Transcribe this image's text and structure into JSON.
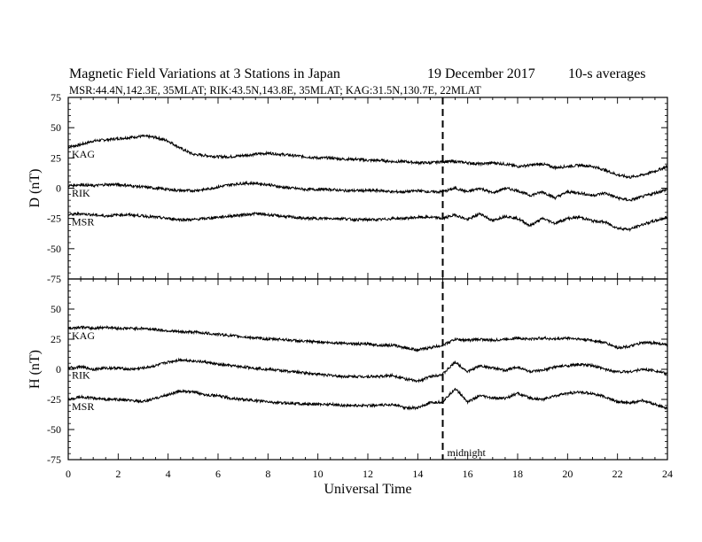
{
  "header": {
    "title": "Magnetic Field Variations at 3 Stations in Japan",
    "date": "19 December 2017",
    "averaging": "10-s averages",
    "stations_line": "MSR:44.4N,142.3E, 35MLAT;  RIK:43.5N,143.8E, 35MLAT;  KAG:31.5N,130.7E, 22MLAT"
  },
  "colors": {
    "ink": "#000000",
    "background": "#ffffff"
  },
  "chart_data": [
    {
      "type": "line",
      "ylabel": "D (nT)",
      "ylim": [
        -75,
        75
      ],
      "yticks": [
        -75,
        -50,
        -25,
        0,
        25,
        50,
        75
      ],
      "xlim": [
        0,
        24
      ],
      "series": [
        {
          "name": "KAG",
          "x": [
            0,
            0.5,
            1,
            1.5,
            2,
            2.5,
            3,
            3.5,
            4,
            4.5,
            5,
            5.5,
            6,
            6.5,
            7,
            7.5,
            8,
            8.5,
            9,
            9.5,
            10,
            10.5,
            11,
            11.5,
            12,
            12.5,
            13,
            13.5,
            14,
            14.5,
            15,
            15.5,
            16,
            16.5,
            17,
            17.5,
            18,
            18.5,
            19,
            19.5,
            20,
            20.5,
            21,
            21.5,
            22,
            22.5,
            23,
            23.5,
            24
          ],
          "y": [
            34,
            36,
            39,
            40,
            41,
            42,
            43,
            42,
            39,
            33,
            28,
            27,
            26,
            26,
            27,
            28,
            29,
            28,
            27,
            26,
            25,
            25,
            24,
            24,
            23,
            23,
            22,
            22,
            21,
            21,
            22,
            22,
            21,
            20,
            21,
            20,
            18,
            19,
            20,
            17,
            18,
            19,
            18,
            15,
            11,
            9,
            11,
            14,
            18
          ]
        },
        {
          "name": "RIK",
          "x": [
            0,
            0.5,
            1,
            1.5,
            2,
            2.5,
            3,
            3.5,
            4,
            4.5,
            5,
            5.5,
            6,
            6.5,
            7,
            7.5,
            8,
            8.5,
            9,
            9.5,
            10,
            10.5,
            11,
            11.5,
            12,
            12.5,
            13,
            13.5,
            14,
            14.5,
            15,
            15.5,
            16,
            16.5,
            17,
            17.5,
            18,
            18.5,
            19,
            19.5,
            20,
            20.5,
            21,
            21.5,
            22,
            22.5,
            23,
            23.5,
            24
          ],
          "y": [
            2,
            3,
            2,
            3,
            3,
            2,
            1,
            0,
            -1,
            -2,
            -2,
            -1,
            1,
            3,
            4,
            4,
            3,
            1,
            0,
            -1,
            -1,
            -1,
            -2,
            -2,
            -2,
            -2,
            -3,
            -3,
            -2,
            -3,
            -3,
            0,
            -3,
            0,
            -4,
            0,
            -2,
            -6,
            -3,
            -8,
            -3,
            -4,
            -6,
            -4,
            -8,
            -10,
            -7,
            -4,
            -1
          ]
        },
        {
          "name": "MSR",
          "x": [
            0,
            0.5,
            1,
            1.5,
            2,
            2.5,
            3,
            3.5,
            4,
            4.5,
            5,
            5.5,
            6,
            6.5,
            7,
            7.5,
            8,
            8.5,
            9,
            9.5,
            10,
            10.5,
            11,
            11.5,
            12,
            12.5,
            13,
            13.5,
            14,
            14.5,
            15,
            15.5,
            16,
            16.5,
            17,
            17.5,
            18,
            18.5,
            19,
            19.5,
            20,
            20.5,
            21,
            21.5,
            22,
            22.5,
            23,
            23.5,
            24
          ],
          "y": [
            -22,
            -21,
            -22,
            -23,
            -22,
            -22,
            -23,
            -24,
            -25,
            -26,
            -26,
            -25,
            -24,
            -23,
            -22,
            -21,
            -22,
            -23,
            -24,
            -25,
            -25,
            -25,
            -25,
            -26,
            -26,
            -26,
            -25,
            -25,
            -24,
            -24,
            -25,
            -22,
            -26,
            -21,
            -27,
            -23,
            -25,
            -31,
            -25,
            -29,
            -25,
            -24,
            -27,
            -28,
            -33,
            -34,
            -30,
            -27,
            -24
          ]
        }
      ]
    },
    {
      "type": "line",
      "ylabel": "H (nT)",
      "ylim": [
        -75,
        75
      ],
      "yticks": [
        -75,
        -50,
        -25,
        0,
        25,
        50,
        75
      ],
      "xlim": [
        0,
        24
      ],
      "xlabel": "Universal Time",
      "xticks": [
        0,
        2,
        4,
        6,
        8,
        10,
        12,
        14,
        16,
        18,
        20,
        22,
        24
      ],
      "midnight_marker": {
        "x": 15,
        "label": "midnight"
      },
      "series": [
        {
          "name": "KAG",
          "x": [
            0,
            0.5,
            1,
            1.5,
            2,
            2.5,
            3,
            3.5,
            4,
            4.5,
            5,
            5.5,
            6,
            6.5,
            7,
            7.5,
            8,
            8.5,
            9,
            9.5,
            10,
            10.5,
            11,
            11.5,
            12,
            12.5,
            13,
            13.5,
            14,
            14.5,
            15,
            15.5,
            16,
            16.5,
            17,
            17.5,
            18,
            18.5,
            19,
            19.5,
            20,
            20.5,
            21,
            21.5,
            22,
            22.5,
            23,
            23.5,
            24
          ],
          "y": [
            34,
            35,
            34,
            35,
            34,
            34,
            34,
            33,
            32,
            31,
            31,
            30,
            29,
            28,
            27,
            26,
            25,
            25,
            24,
            23,
            23,
            22,
            22,
            21,
            21,
            20,
            20,
            18,
            16,
            18,
            20,
            25,
            24,
            25,
            24,
            25,
            26,
            25,
            26,
            25,
            26,
            25,
            24,
            22,
            18,
            19,
            22,
            22,
            20
          ]
        },
        {
          "name": "RIK",
          "x": [
            0,
            0.5,
            1,
            1.5,
            2,
            2.5,
            3,
            3.5,
            4,
            4.5,
            5,
            5.5,
            6,
            6.5,
            7,
            7.5,
            8,
            8.5,
            9,
            9.5,
            10,
            10.5,
            11,
            11.5,
            12,
            12.5,
            13,
            13.5,
            14,
            14.5,
            15,
            15.5,
            16,
            16.5,
            17,
            17.5,
            18,
            18.5,
            19,
            19.5,
            20,
            20.5,
            21,
            21.5,
            22,
            22.5,
            23,
            23.5,
            24
          ],
          "y": [
            1,
            2,
            0,
            1,
            1,
            0,
            1,
            3,
            6,
            8,
            7,
            6,
            4,
            3,
            2,
            1,
            0,
            -1,
            -2,
            -3,
            -4,
            -5,
            -6,
            -6,
            -6,
            -6,
            -5,
            -8,
            -10,
            -6,
            -4,
            6,
            -2,
            3,
            1,
            -1,
            2,
            -2,
            -1,
            2,
            3,
            4,
            3,
            0,
            -2,
            -2,
            0,
            -1,
            -4
          ]
        },
        {
          "name": "MSR",
          "x": [
            0,
            0.5,
            1,
            1.5,
            2,
            2.5,
            3,
            3.5,
            4,
            4.5,
            5,
            5.5,
            6,
            6.5,
            7,
            7.5,
            8,
            8.5,
            9,
            9.5,
            10,
            10.5,
            11,
            11.5,
            12,
            12.5,
            13,
            13.5,
            14,
            14.5,
            15,
            15.5,
            16,
            16.5,
            17,
            17.5,
            18,
            18.5,
            19,
            19.5,
            20,
            20.5,
            21,
            21.5,
            22,
            22.5,
            23,
            23.5,
            24
          ],
          "y": [
            -25,
            -23,
            -24,
            -25,
            -25,
            -26,
            -27,
            -24,
            -21,
            -18,
            -19,
            -21,
            -22,
            -24,
            -25,
            -26,
            -27,
            -28,
            -28,
            -29,
            -29,
            -29,
            -30,
            -30,
            -30,
            -30,
            -29,
            -32,
            -32,
            -28,
            -27,
            -16,
            -27,
            -22,
            -24,
            -24,
            -20,
            -24,
            -25,
            -22,
            -20,
            -19,
            -20,
            -23,
            -27,
            -28,
            -26,
            -29,
            -33
          ]
        }
      ]
    }
  ]
}
